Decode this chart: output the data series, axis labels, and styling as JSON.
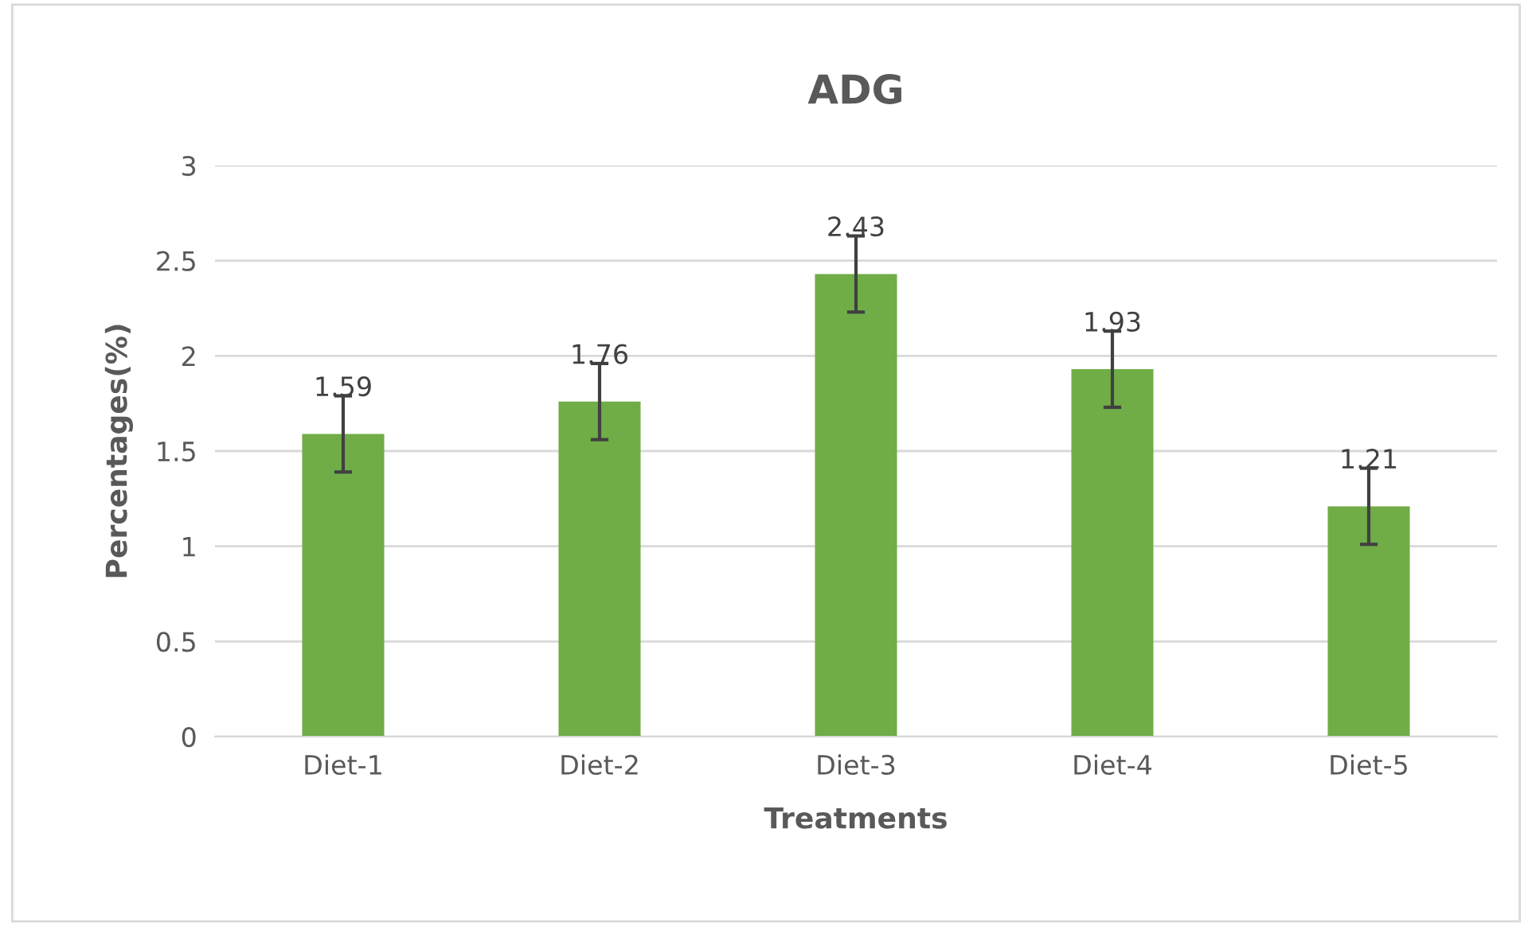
{
  "chart_data": {
    "type": "bar",
    "title": "ADG",
    "xlabel": "Treatments",
    "ylabel": "Percentages(%)",
    "categories": [
      "Diet-1",
      "Diet-2",
      "Diet-3",
      "Diet-4",
      "Diet-5"
    ],
    "values": [
      1.59,
      1.76,
      2.43,
      1.93,
      1.21
    ],
    "errors": [
      0.2,
      0.2,
      0.2,
      0.2,
      0.2
    ],
    "color": "#70ad47",
    "ylim": [
      0,
      3
    ],
    "yticks": [
      0,
      0.5,
      1,
      1.5,
      2,
      2.5,
      3
    ],
    "grid": "y",
    "data_labels": true
  }
}
